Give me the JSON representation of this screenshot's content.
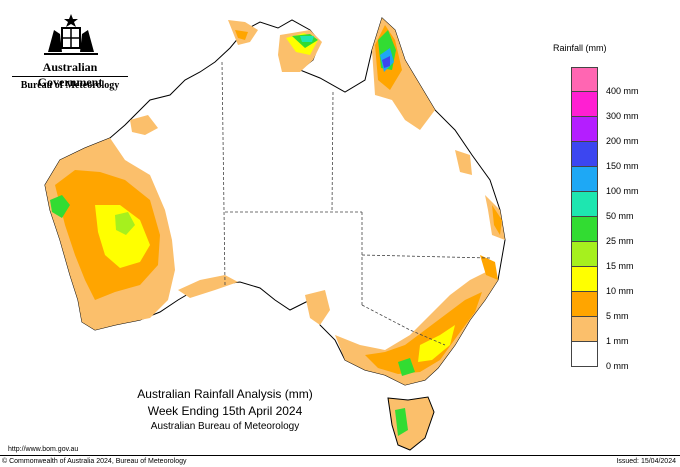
{
  "header": {
    "government": "Australian Government",
    "bureau": "Bureau of Meteorology"
  },
  "legend": {
    "title": "Rainfall (mm)",
    "items": [
      {
        "label": "",
        "color": "#ff66b2"
      },
      {
        "label": "400 mm",
        "color": "#ff1fd2"
      },
      {
        "label": "300 mm",
        "color": "#b41eff"
      },
      {
        "label": "200 mm",
        "color": "#3c46f0"
      },
      {
        "label": "150 mm",
        "color": "#1ea8f5"
      },
      {
        "label": "100 mm",
        "color": "#1ee6b0"
      },
      {
        "label": "50 mm",
        "color": "#32dc32"
      },
      {
        "label": "25 mm",
        "color": "#a6f01e"
      },
      {
        "label": "15 mm",
        "color": "#ffff00"
      },
      {
        "label": "10 mm",
        "color": "#ffa500"
      },
      {
        "label": "5 mm",
        "color": "#fbbf6b"
      },
      {
        "label": "1 mm",
        "color": "#ffffff"
      },
      {
        "label": "0 mm",
        "color": ""
      }
    ]
  },
  "caption": {
    "line1": "Australian Rainfall Analysis (mm)",
    "line2": "Week Ending 15th April 2024",
    "line3": "Australian Bureau of Meteorology"
  },
  "footer": {
    "url": "http://www.bom.gov.au",
    "copyright": "© Commonwealth of Australia 2024, Bureau of Meteorology",
    "issued": "Issued: 15/04/2024"
  }
}
